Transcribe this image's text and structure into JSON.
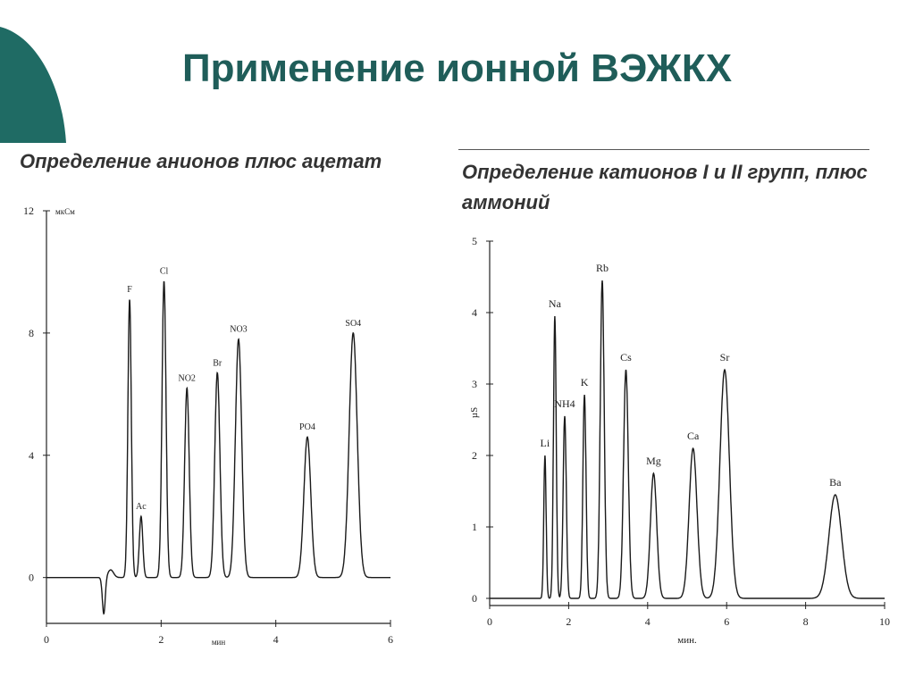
{
  "slide": {
    "title": "Применение ионной ВЭЖКХ",
    "accent_color": "#1f6b64"
  },
  "chart_data": [
    {
      "type": "line",
      "title": "Определение анионов плюс ацетат",
      "xlabel": "мин",
      "ylabel": "мкСм",
      "xlim": [
        0,
        6
      ],
      "ylim": [
        -1.5,
        12
      ],
      "x_ticks": [
        0,
        2,
        4,
        6
      ],
      "y_ticks": [
        0,
        4,
        8,
        12
      ],
      "grid": false,
      "baseline": 0,
      "dip": {
        "x": 1.0,
        "y": -1.2
      },
      "peaks": [
        {
          "label": "F",
          "x": 1.45,
          "height": 9.1,
          "width": 0.03
        },
        {
          "label": "Ac",
          "x": 1.65,
          "height": 2.0,
          "width": 0.03
        },
        {
          "label": "Cl",
          "x": 2.05,
          "height": 9.7,
          "width": 0.035
        },
        {
          "label": "NO2",
          "x": 2.45,
          "height": 6.2,
          "width": 0.04
        },
        {
          "label": "Br",
          "x": 2.98,
          "height": 6.7,
          "width": 0.045
        },
        {
          "label": "NO3",
          "x": 3.35,
          "height": 7.8,
          "width": 0.055
        },
        {
          "label": "PO4",
          "x": 4.55,
          "height": 4.6,
          "width": 0.06
        },
        {
          "label": "SO4",
          "x": 5.35,
          "height": 8.0,
          "width": 0.07
        }
      ]
    },
    {
      "type": "line",
      "title": "Определение катионов I и II групп, плюс аммоний",
      "xlabel": "мин.",
      "ylabel": "µS",
      "xlim": [
        0,
        10
      ],
      "ylim": [
        -0.1,
        5
      ],
      "x_ticks": [
        0,
        2,
        4,
        6,
        8,
        10
      ],
      "y_ticks": [
        0,
        1,
        2,
        3,
        4,
        5
      ],
      "grid": false,
      "baseline": 0,
      "peaks": [
        {
          "label": "Li",
          "x": 1.4,
          "height": 2.0,
          "width": 0.03
        },
        {
          "label": "Na",
          "x": 1.65,
          "height": 3.95,
          "width": 0.035
        },
        {
          "label": "NH4",
          "x": 1.9,
          "height": 2.55,
          "width": 0.04
        },
        {
          "label": "K",
          "x": 2.4,
          "height": 2.85,
          "width": 0.04
        },
        {
          "label": "Rb",
          "x": 2.85,
          "height": 4.45,
          "width": 0.05
        },
        {
          "label": "Cs",
          "x": 3.45,
          "height": 3.2,
          "width": 0.06
        },
        {
          "label": "Mg",
          "x": 4.15,
          "height": 1.75,
          "width": 0.08
        },
        {
          "label": "Ca",
          "x": 5.15,
          "height": 2.1,
          "width": 0.1
        },
        {
          "label": "Sr",
          "x": 5.95,
          "height": 3.2,
          "width": 0.12
        },
        {
          "label": "Ba",
          "x": 8.75,
          "height": 1.45,
          "width": 0.16
        }
      ]
    }
  ]
}
